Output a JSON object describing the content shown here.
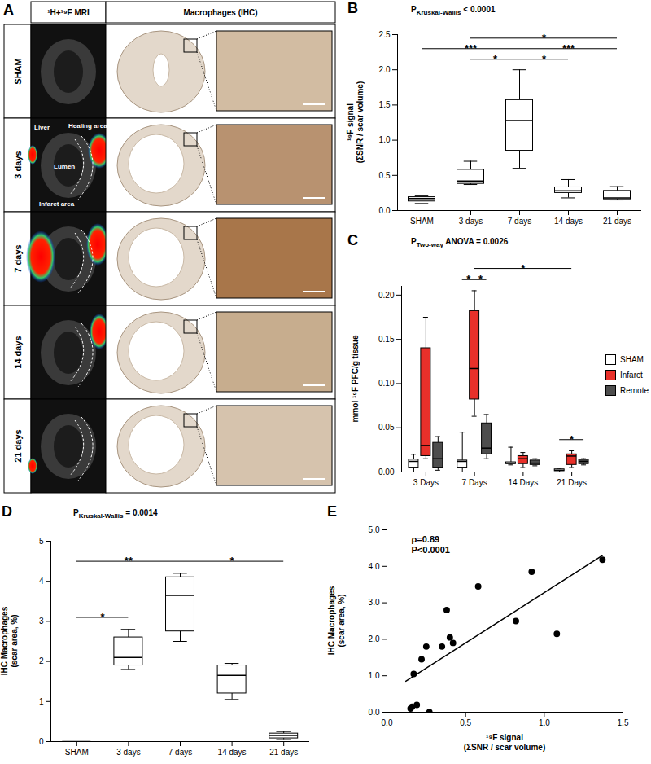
{
  "panel_a": {
    "panel": "A",
    "columns": [
      "¹H+¹⁹F MRI",
      "Macrophages (IHC)"
    ],
    "rows": [
      "SHAM",
      "3 days",
      "7 days",
      "14 days",
      "21 days"
    ],
    "annotations": [
      "Liver",
      "Healing area",
      "Lumen",
      "Infarct area"
    ]
  },
  "chart_data": [
    {
      "panel": "B",
      "type": "box",
      "title": "PKruskal-Wallis < 0.0001",
      "y_label": "¹⁹F signal\n(ΣSNR / scar volume)",
      "categories": [
        "SHAM",
        "3 days",
        "7 days",
        "14 days",
        "21 days"
      ],
      "color": "#ffffff",
      "boxes": [
        {
          "min": 0.1,
          "q1": 0.13,
          "median": 0.17,
          "q3": 0.19,
          "max": 0.21
        },
        {
          "min": 0.37,
          "q1": 0.38,
          "median": 0.42,
          "q3": 0.58,
          "max": 0.7
        },
        {
          "min": 0.6,
          "q1": 0.85,
          "median": 1.28,
          "q3": 1.57,
          "max": 2.0
        },
        {
          "min": 0.18,
          "q1": 0.25,
          "median": 0.28,
          "q3": 0.33,
          "max": 0.44
        },
        {
          "min": 0.15,
          "q1": 0.16,
          "median": 0.18,
          "q3": 0.28,
          "max": 0.34
        }
      ],
      "ylim": [
        0,
        2.5
      ],
      "yticks": [
        {
          "value": 0,
          "label": "0.0"
        },
        {
          "value": 0.5,
          "label": "0.5"
        },
        {
          "value": 1,
          "label": "1.0"
        },
        {
          "value": 1.5,
          "label": "1.5"
        },
        {
          "value": 2,
          "label": "2.0"
        },
        {
          "value": 2.5,
          "label": "2.5"
        }
      ],
      "significance": [
        {
          "from": "3 days",
          "to": "7 days",
          "label": "*"
        },
        {
          "from": "7 days",
          "to": "14 days",
          "label": "*"
        },
        {
          "from": "SHAM",
          "to": "7 days",
          "label": "***"
        },
        {
          "from": "7 days",
          "to": "21 days",
          "label": "***"
        },
        {
          "from": "3 days",
          "to": "21 days",
          "label": "*"
        }
      ]
    },
    {
      "panel": "C",
      "type": "box",
      "title": "PTwo-way ANOVA = 0.0026",
      "y_label": "mmol ¹⁹F PFC/g tissue",
      "categories": [
        "3 Days",
        "7 Days",
        "14 Days",
        "21 Days"
      ],
      "legend": "right",
      "series": [
        {
          "name": "SHAM",
          "color": "#ffffff",
          "boxes": [
            {
              "min": 0.0,
              "q1": 0.005,
              "median": 0.012,
              "q3": 0.014,
              "max": 0.02
            },
            {
              "min": 0.0,
              "q1": 0.005,
              "median": 0.012,
              "q3": 0.013,
              "max": 0.045
            },
            {
              "min": 0.008,
              "q1": 0.009,
              "median": 0.01,
              "q3": 0.011,
              "max": 0.028
            },
            {
              "min": 0.0,
              "q1": 0.001,
              "median": 0.002,
              "q3": 0.003,
              "max": 0.004
            }
          ]
        },
        {
          "name": "Infarct",
          "color": "#e8302a",
          "boxes": [
            {
              "min": 0.015,
              "q1": 0.018,
              "median": 0.03,
              "q3": 0.14,
              "max": 0.175
            },
            {
              "min": 0.063,
              "q1": 0.082,
              "median": 0.117,
              "q3": 0.182,
              "max": 0.205
            },
            {
              "min": 0.005,
              "q1": 0.009,
              "median": 0.015,
              "q3": 0.018,
              "max": 0.022
            },
            {
              "min": 0.005,
              "q1": 0.008,
              "median": 0.018,
              "q3": 0.02,
              "max": 0.024
            }
          ]
        },
        {
          "name": "Remote",
          "color": "#4d4d4d",
          "boxes": [
            {
              "min": 0.002,
              "q1": 0.005,
              "median": 0.015,
              "q3": 0.033,
              "max": 0.04
            },
            {
              "min": 0.015,
              "q1": 0.02,
              "median": 0.027,
              "q3": 0.055,
              "max": 0.065
            },
            {
              "min": 0.007,
              "q1": 0.008,
              "median": 0.01,
              "q3": 0.013,
              "max": 0.015
            },
            {
              "min": 0.008,
              "q1": 0.009,
              "median": 0.012,
              "q3": 0.014,
              "max": 0.015
            }
          ]
        }
      ],
      "ylim": [
        0,
        0.21
      ],
      "yticks": [
        {
          "value": 0,
          "label": "0.00"
        },
        {
          "value": 0.05,
          "label": "0.05"
        },
        {
          "value": 0.1,
          "label": "0.10"
        },
        {
          "value": 0.15,
          "label": "0.15"
        },
        {
          "value": 0.2,
          "label": "0.20"
        }
      ],
      "significance": [
        {
          "from": [
            "7 Days",
            "Infarct"
          ],
          "to": [
            "7 Days",
            "Remote"
          ],
          "label": "*"
        },
        {
          "from": [
            "7 Days",
            "SHAM"
          ],
          "to": [
            "7 Days",
            "Infarct"
          ],
          "label": "*"
        },
        {
          "from": [
            "7 Days",
            "Infarct"
          ],
          "to": [
            "21 Days",
            "Infarct"
          ],
          "label": "*"
        },
        {
          "from": [
            "21 Days",
            "SHAM"
          ],
          "to": [
            "21 Days",
            "Remote"
          ],
          "label": "*"
        }
      ]
    },
    {
      "panel": "D",
      "type": "box",
      "title": "PKruskal-Wallis = 0.0014",
      "y_label": "IHC Macrophages\n(scar area, %)",
      "categories": [
        "SHAM",
        "3 days",
        "7 days",
        "14 days",
        "21 days"
      ],
      "color": "#ffffff",
      "boxes": [
        {
          "min": 0,
          "q1": 0,
          "median": 0,
          "q3": 0,
          "max": 0
        },
        {
          "min": 1.8,
          "q1": 1.9,
          "median": 2.1,
          "q3": 2.6,
          "max": 2.8
        },
        {
          "min": 2.5,
          "q1": 2.75,
          "median": 3.65,
          "q3": 4.1,
          "max": 4.2
        },
        {
          "min": 1.05,
          "q1": 1.2,
          "median": 1.65,
          "q3": 1.9,
          "max": 1.95
        },
        {
          "min": 0.05,
          "q1": 0.08,
          "median": 0.15,
          "q3": 0.2,
          "max": 0.25
        }
      ],
      "ylim": [
        0,
        5
      ],
      "yticks": [
        0,
        1,
        2,
        3,
        4,
        5
      ],
      "significance": [
        {
          "from": "SHAM",
          "to": "3 days",
          "label": "*"
        },
        {
          "from": "SHAM",
          "to": "7 days",
          "label": "**"
        },
        {
          "from": "7 days",
          "to": "21 days",
          "label": "*"
        }
      ]
    },
    {
      "panel": "E",
      "type": "scatter",
      "x_label": "¹⁹F signal\n(ΣSNR / scar volume)",
      "y_label": "IHC Macrophages\n(scar area, %)",
      "color": "#000000",
      "marker": "circle",
      "x": [
        0.15,
        0.16,
        0.17,
        0.19,
        0.22,
        0.25,
        0.27,
        0.35,
        0.38,
        0.4,
        0.42,
        0.58,
        0.82,
        0.92,
        1.08,
        1.37
      ],
      "y": [
        0.1,
        0.15,
        1.05,
        0.2,
        1.45,
        1.8,
        0.0,
        1.8,
        2.8,
        2.05,
        1.9,
        3.45,
        2.5,
        3.85,
        2.15,
        4.18
      ],
      "trend": {
        "x": [
          0.12,
          1.37
        ],
        "y": [
          0.85,
          4.3
        ]
      },
      "annotations": [
        "ρ=0.89",
        "P<0.0001"
      ],
      "xlim": [
        0,
        1.5
      ],
      "ylim": [
        0,
        5
      ],
      "xticks": [
        {
          "value": 0,
          "label": "0.0"
        },
        {
          "value": 0.5,
          "label": "0.5"
        },
        {
          "value": 1,
          "label": "1.0"
        },
        {
          "value": 1.5,
          "label": "1.5"
        }
      ],
      "yticks": [
        {
          "value": 0,
          "label": "0.0"
        },
        {
          "value": 1,
          "label": "1.0"
        },
        {
          "value": 2,
          "label": "2.0"
        },
        {
          "value": 3,
          "label": "3.0"
        },
        {
          "value": 4,
          "label": "4.0"
        },
        {
          "value": 5,
          "label": "5.0"
        }
      ]
    }
  ]
}
